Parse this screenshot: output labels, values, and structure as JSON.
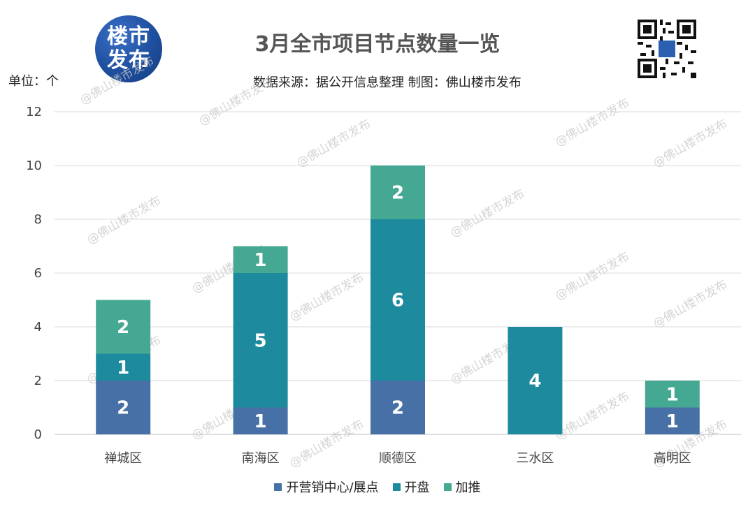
{
  "logo": {
    "line1": "楼市",
    "line2": "发布"
  },
  "header": {
    "title": "3月全市项目节点数量一览",
    "source": "数据来源：据公开信息整理 制图：佛山楼市发布",
    "unit": "单位：个"
  },
  "watermark": "@佛山楼市发布",
  "qr_icon": "qr-code-icon",
  "colors": {
    "开营销中心/展点": "#4670a6",
    "开盘": "#1e8a9e",
    "加推": "#44a892",
    "grid": "#d9d9d9"
  },
  "chart_data": {
    "type": "bar",
    "stacked": true,
    "categories": [
      "禅城区",
      "南海区",
      "顺德区",
      "三水区",
      "高明区"
    ],
    "series": [
      {
        "name": "开营销中心/展点",
        "values": [
          2,
          1,
          2,
          0,
          1
        ]
      },
      {
        "name": "开盘",
        "values": [
          1,
          5,
          6,
          4,
          0
        ]
      },
      {
        "name": "加推",
        "values": [
          2,
          1,
          2,
          0,
          1
        ]
      }
    ],
    "ylim": [
      0,
      12
    ],
    "yticks": [
      0,
      2,
      4,
      6,
      8,
      10,
      12
    ],
    "grid": true,
    "legend_position": "bottom"
  }
}
